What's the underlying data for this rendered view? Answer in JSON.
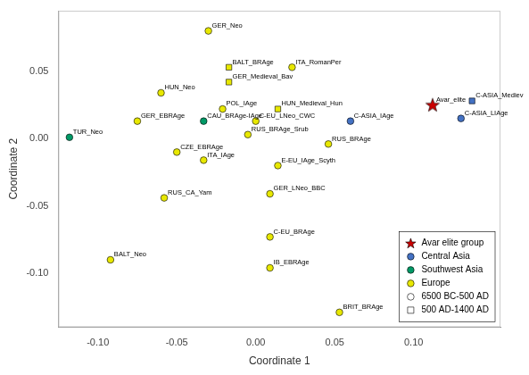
{
  "chart_data": {
    "type": "scatter",
    "xlabel": "Coordinate 1",
    "ylabel": "Coordinate 2",
    "xlim": [
      -0.125,
      0.155
    ],
    "ylim": [
      -0.14,
      0.095
    ],
    "xticks": [
      {
        "value": -0.1,
        "label": "-0.10"
      },
      -0.05,
      {
        "value": 0.0,
        "label": "0.00"
      },
      0.05,
      {
        "value": 0.1,
        "label": "0.10"
      }
    ],
    "yticks": [
      {
        "value": -0.1,
        "label": "-0.10"
      },
      -0.05,
      {
        "value": 0.0,
        "label": "0.00"
      },
      0.05
    ],
    "grid": false,
    "annotations": [
      "GER_Neo",
      "BALT_BRAge",
      "ITA_RomanPer",
      "GER_Medieval_Bav",
      "HUN_Neo",
      "POL_IAge",
      "HUN_Medieval_Hun",
      "GER_EBRAge",
      "CAU_BRAge-IAge",
      "C-EU_LNeo_CWC",
      "C-ASIA_IAge",
      "TUR_Neo",
      "RUS_BRAge_Srub",
      "CZE_EBRAge",
      "RUS_BRAge",
      "ITA_IAge",
      "E-EU_IAge_Scyth",
      "RUS_CA_Yam",
      "GER_LNeo_BBC",
      "C-EU_BRAge",
      "BALT_Neo",
      "IB_EBRAge",
      "BRIT_BRAge",
      "Avar_elite",
      "C-ASIA_Mediev",
      "C-ASIA_LIAge"
    ],
    "x": [
      -0.03,
      -0.017,
      0.023,
      -0.017,
      -0.06,
      -0.021,
      0.014,
      -0.075,
      -0.033,
      0.0,
      0.06,
      -0.118,
      -0.005,
      -0.05,
      0.046,
      -0.033,
      0.014,
      -0.058,
      0.009,
      0.009,
      -0.092,
      0.009,
      0.053,
      0.112,
      0.137,
      0.13
    ],
    "values": [
      0.08,
      0.053,
      0.053,
      0.042,
      0.034,
      0.022,
      0.022,
      0.013,
      0.013,
      0.013,
      0.013,
      0.001,
      0.003,
      -0.01,
      -0.004,
      -0.016,
      -0.02,
      -0.044,
      -0.041,
      -0.073,
      -0.09,
      -0.096,
      -0.129,
      0.025,
      0.028,
      0.015
    ],
    "colors": [
      "#e8e800",
      "#e8e800",
      "#e8e800",
      "#e8e800",
      "#e8e800",
      "#e8e800",
      "#e8e800",
      "#e8e800",
      "#009966",
      "#e8e800",
      "#4472c4",
      "#009966",
      "#e8e800",
      "#e8e800",
      "#e8e800",
      "#e8e800",
      "#e8e800",
      "#e8e800",
      "#e8e800",
      "#e8e800",
      "#e8e800",
      "#e8e800",
      "#e8e800",
      "#cc0000",
      "#4472c4",
      "#4472c4"
    ],
    "markers": [
      "circle",
      "square",
      "circle",
      "square",
      "circle",
      "circle",
      "square",
      "circle",
      "circle",
      "circle",
      "circle",
      "circle",
      "circle",
      "circle",
      "circle",
      "circle",
      "circle",
      "circle",
      "circle",
      "circle",
      "circle",
      "circle",
      "circle",
      "star",
      "square",
      "circle"
    ],
    "legend": "lower right",
    "legend_items": [
      {
        "name": "Avar elite group",
        "color": "#cc0000",
        "marker": "star"
      },
      {
        "name": "Central Asia",
        "color": "#4472c4",
        "marker": "circle"
      },
      {
        "name": "Southwest Asia",
        "color": "#009966",
        "marker": "circle"
      },
      {
        "name": "Europe",
        "color": "#e8e800",
        "marker": "circle"
      },
      {
        "name": "6500 BC-500 AD",
        "color": "#ffffff",
        "marker": "circle"
      },
      {
        "name": "500 AD-1400 AD",
        "color": "#ffffff",
        "marker": "square"
      }
    ]
  }
}
